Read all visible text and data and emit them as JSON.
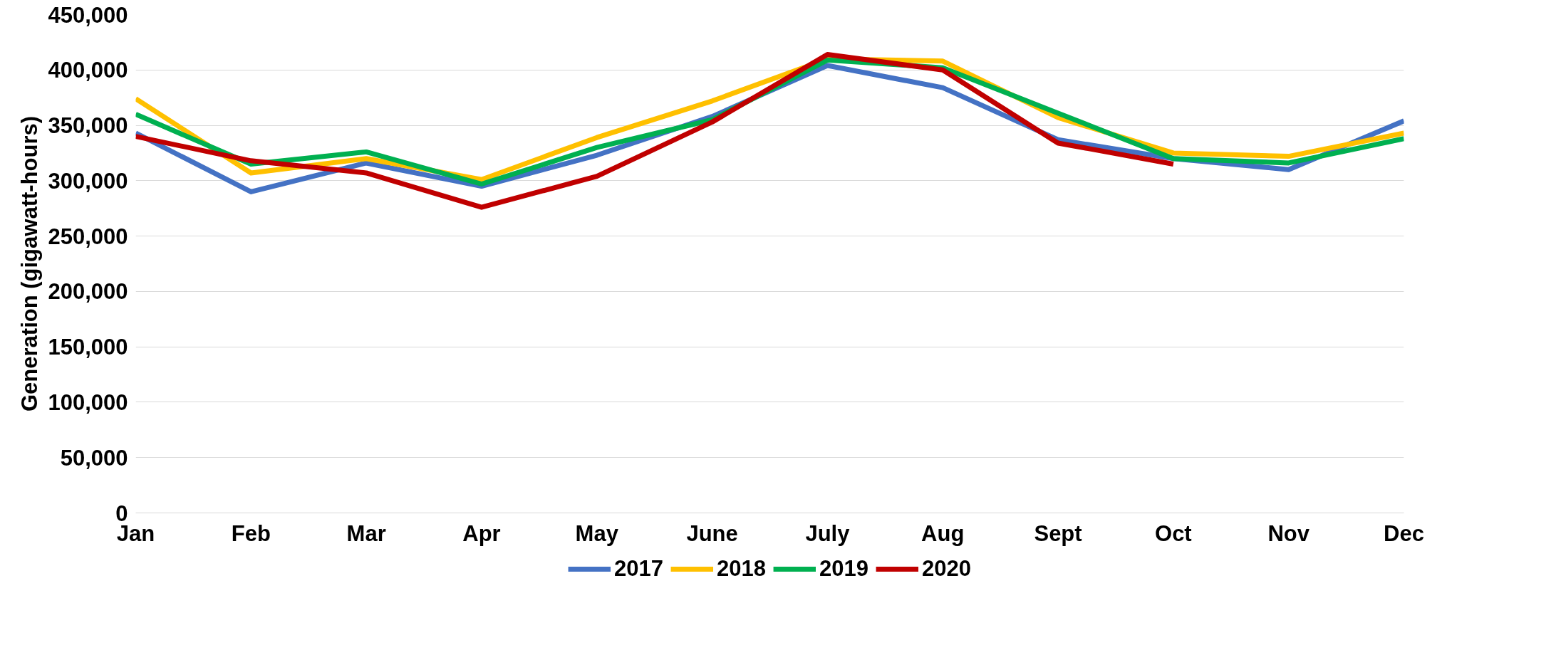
{
  "chart_data": {
    "type": "line",
    "ylabel": "Generation (gigawatt-hours)",
    "categories": [
      "Jan",
      "Feb",
      "Mar",
      "Apr",
      "May",
      "June",
      "July",
      "Aug",
      "Sept",
      "Oct",
      "Nov",
      "Dec"
    ],
    "series": [
      {
        "name": "2017",
        "color": "#4472c4",
        "values": [
          343000,
          290000,
          316000,
          295000,
          323000,
          358000,
          404000,
          384000,
          337000,
          320000,
          310000,
          354000
        ]
      },
      {
        "name": "2018",
        "color": "#ffc000",
        "values": [
          374000,
          307000,
          320000,
          301000,
          339000,
          372000,
          410000,
          408000,
          357000,
          325000,
          322000,
          343000
        ]
      },
      {
        "name": "2019",
        "color": "#00b050",
        "values": [
          360000,
          315000,
          326000,
          297000,
          330000,
          355000,
          409000,
          402000,
          361000,
          320000,
          316000,
          338000
        ]
      },
      {
        "name": "2020",
        "color": "#c00000",
        "values": [
          340000,
          318000,
          307000,
          276000,
          304000,
          353000,
          414000,
          400000,
          334000,
          315000,
          null,
          null
        ]
      }
    ],
    "ylim": [
      0,
      450000
    ],
    "yticks": [
      {
        "value": 0,
        "label": "0"
      },
      {
        "value": 50000,
        "label": "50,000"
      },
      {
        "value": 100000,
        "label": "100,000"
      },
      {
        "value": 150000,
        "label": "150,000"
      },
      {
        "value": 200000,
        "label": "200,000"
      },
      {
        "value": 250000,
        "label": "250,000"
      },
      {
        "value": 300000,
        "label": "300,000"
      },
      {
        "value": 350000,
        "label": "350,000"
      },
      {
        "value": 400000,
        "label": "400,000"
      },
      {
        "value": 450000,
        "label": "450,000"
      }
    ],
    "grid": "y",
    "legend": "bottom",
    "marker": "none",
    "line_style": "solid"
  }
}
